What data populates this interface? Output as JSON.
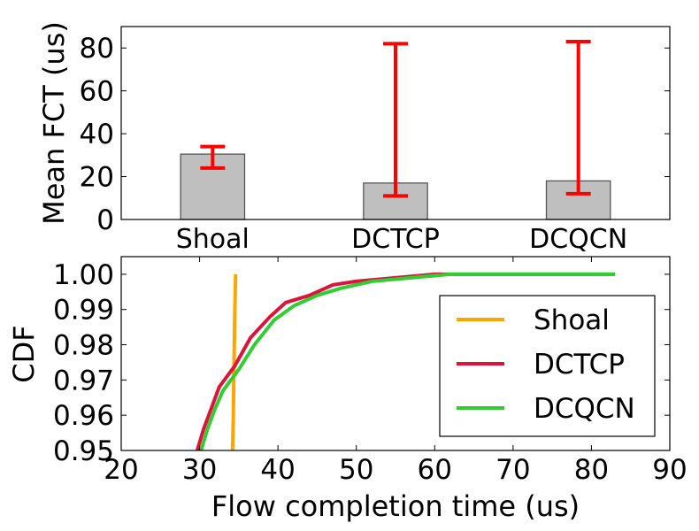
{
  "chart_data": [
    {
      "type": "bar",
      "ylabel": "Mean FCT (us)",
      "categories": [
        "Shoal",
        "DCTCP",
        "DCQCN"
      ],
      "values": [
        30.5,
        17,
        18
      ],
      "error_low": [
        24,
        11,
        12
      ],
      "error_high": [
        34,
        82,
        83
      ],
      "ylim": [
        0,
        90
      ],
      "yticks": [
        "0",
        "20",
        "40",
        "60",
        "80"
      ],
      "bar_color": "#bfbfbf",
      "error_color": "#ff0000",
      "grid": false
    },
    {
      "type": "line",
      "xlabel": "Flow completion time (us)",
      "ylabel": "CDF",
      "xlim": [
        20,
        90
      ],
      "ylim": [
        0.95,
        1.005
      ],
      "xticks": [
        "20",
        "30",
        "40",
        "50",
        "60",
        "70",
        "80",
        "90"
      ],
      "yticks": [
        "0.95",
        "0.96",
        "0.97",
        "0.98",
        "0.99",
        "1.00"
      ],
      "legend_position": "center-right",
      "grid": false,
      "series": [
        {
          "name": "Shoal",
          "color": "#ffa500",
          "points": [
            [
              34.2,
              0.95
            ],
            [
              34.3,
              0.96
            ],
            [
              34.4,
              0.975
            ],
            [
              34.5,
              0.99
            ],
            [
              34.6,
              1.0
            ]
          ]
        },
        {
          "name": "DCTCP",
          "color": "#dc143c",
          "points": [
            [
              29.7,
              0.95
            ],
            [
              30.5,
              0.956
            ],
            [
              31.5,
              0.962
            ],
            [
              32.5,
              0.968
            ],
            [
              34.5,
              0.974
            ],
            [
              36.5,
              0.982
            ],
            [
              39,
              0.988
            ],
            [
              41,
              0.992
            ],
            [
              44,
              0.994
            ],
            [
              47,
              0.997
            ],
            [
              50,
              0.998
            ],
            [
              55,
              0.999
            ],
            [
              60,
              1.0
            ],
            [
              70,
              1.0
            ],
            [
              83,
              1.0
            ]
          ]
        },
        {
          "name": "DCQCN",
          "color": "#32cd32",
          "points": [
            [
              30.2,
              0.95
            ],
            [
              31,
              0.956
            ],
            [
              32,
              0.962
            ],
            [
              33,
              0.967
            ],
            [
              35,
              0.973
            ],
            [
              37,
              0.98
            ],
            [
              39.5,
              0.987
            ],
            [
              42,
              0.991
            ],
            [
              45,
              0.994
            ],
            [
              48,
              0.996
            ],
            [
              52,
              0.998
            ],
            [
              57,
              0.999
            ],
            [
              62,
              1.0
            ],
            [
              72,
              1.0
            ],
            [
              83,
              1.0
            ]
          ]
        }
      ]
    }
  ]
}
